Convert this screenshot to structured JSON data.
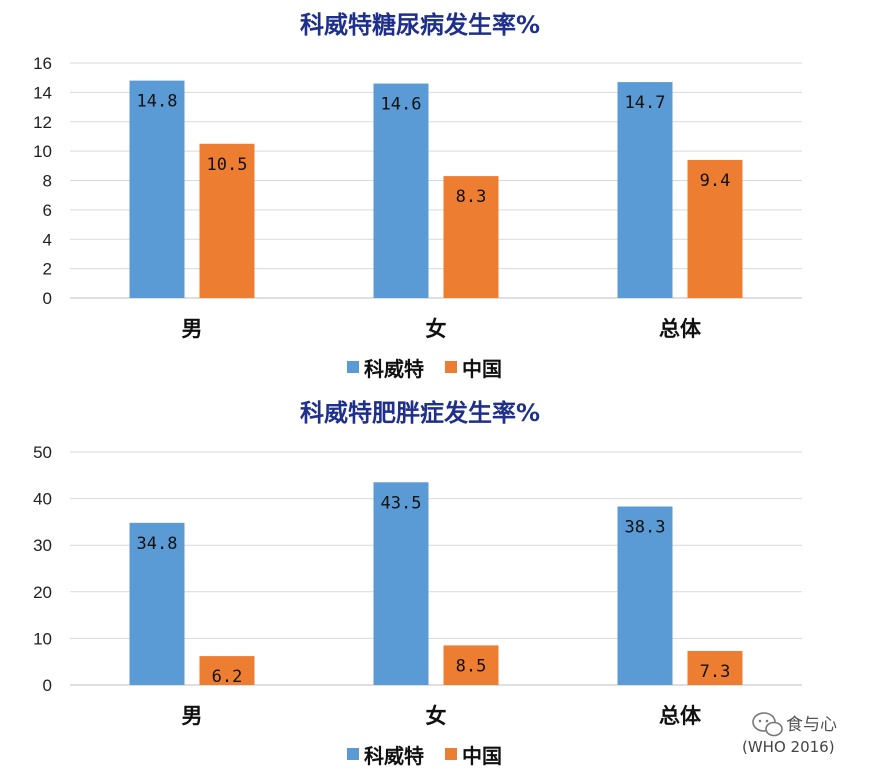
{
  "colors": {
    "kuwait": "#5b9bd5",
    "china": "#ed7d31",
    "title": "#1f2f8c"
  },
  "chart_data": [
    {
      "type": "bar",
      "title": "科威特糖尿病发生率%",
      "categories": [
        "男",
        "女",
        "总体"
      ],
      "ylim": [
        0,
        16
      ],
      "yticks": [
        0,
        2,
        4,
        6,
        8,
        10,
        12,
        14,
        16
      ],
      "grid": true,
      "legend": "bottom-center",
      "series": [
        {
          "name": "科威特",
          "values": [
            14.8,
            14.6,
            14.7
          ],
          "labels": [
            "14.8",
            "14.6",
            "14.7"
          ]
        },
        {
          "name": "中国",
          "values": [
            10.5,
            8.3,
            9.4
          ],
          "labels": [
            "10.5",
            "8.3",
            "9.4"
          ]
        }
      ]
    },
    {
      "type": "bar",
      "title": "科威特肥胖症发生率%",
      "categories": [
        "男",
        "女",
        "总体"
      ],
      "ylim": [
        0,
        50
      ],
      "yticks": [
        0,
        10,
        20,
        30,
        40,
        50
      ],
      "grid": true,
      "legend": "bottom-center",
      "series": [
        {
          "name": "科威特",
          "values": [
            34.8,
            43.5,
            38.3
          ],
          "labels": [
            "34.8",
            "43.5",
            "38.3"
          ]
        },
        {
          "name": "中国",
          "values": [
            6.2,
            8.5,
            7.3
          ],
          "labels": [
            "6.2",
            "8.5",
            "7.3"
          ]
        }
      ]
    }
  ],
  "watermark": {
    "icon": "chat-bubble-icon",
    "text": "食与心"
  },
  "source_note": "(WHO 2016)"
}
